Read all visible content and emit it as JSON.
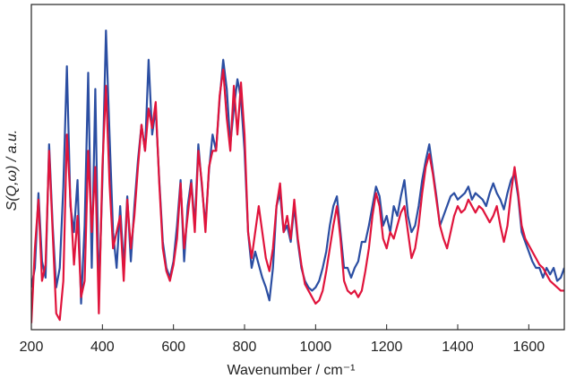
{
  "chart_data": {
    "type": "line",
    "xlabel": "Wavenumber / cm⁻¹",
    "ylabel": "S(Q,ω) / a.u.",
    "xlim": [
      200,
      1700
    ],
    "xticks": [
      200,
      400,
      600,
      800,
      1000,
      1200,
      1400,
      1600
    ],
    "ylim": [
      0,
      100
    ],
    "x": [
      200,
      210,
      220,
      230,
      240,
      250,
      260,
      270,
      280,
      290,
      300,
      310,
      320,
      330,
      340,
      350,
      360,
      370,
      380,
      390,
      400,
      410,
      420,
      430,
      440,
      450,
      460,
      470,
      480,
      490,
      500,
      510,
      520,
      530,
      540,
      550,
      560,
      570,
      580,
      590,
      600,
      610,
      620,
      630,
      640,
      650,
      660,
      670,
      680,
      690,
      700,
      710,
      720,
      730,
      740,
      750,
      760,
      770,
      780,
      790,
      800,
      810,
      820,
      830,
      840,
      850,
      860,
      870,
      880,
      890,
      900,
      910,
      920,
      930,
      940,
      950,
      960,
      970,
      980,
      990,
      1000,
      1010,
      1020,
      1030,
      1040,
      1050,
      1060,
      1070,
      1080,
      1090,
      1100,
      1110,
      1120,
      1130,
      1140,
      1150,
      1160,
      1170,
      1180,
      1190,
      1200,
      1210,
      1220,
      1230,
      1240,
      1250,
      1260,
      1270,
      1280,
      1290,
      1300,
      1310,
      1320,
      1330,
      1340,
      1350,
      1360,
      1370,
      1380,
      1390,
      1400,
      1410,
      1420,
      1430,
      1440,
      1450,
      1460,
      1470,
      1480,
      1490,
      1500,
      1510,
      1520,
      1530,
      1540,
      1550,
      1560,
      1570,
      1580,
      1590,
      1600,
      1610,
      1620,
      1630,
      1640,
      1650,
      1660,
      1670,
      1680,
      1690,
      1700
    ],
    "series": [
      {
        "color": "#2b4ea2",
        "values": [
          13,
          19,
          42,
          21,
          16,
          57,
          32,
          13,
          19,
          44,
          81,
          38,
          30,
          46,
          8,
          32,
          79,
          19,
          74,
          10,
          46,
          92,
          60,
          30,
          19,
          38,
          19,
          41,
          21,
          38,
          52,
          63,
          55,
          83,
          60,
          68,
          46,
          27,
          19,
          16,
          21,
          32,
          46,
          21,
          38,
          46,
          32,
          57,
          44,
          32,
          49,
          60,
          55,
          71,
          83,
          74,
          57,
          68,
          77,
          71,
          55,
          30,
          19,
          24,
          20,
          16,
          13,
          9,
          19,
          38,
          42,
          30,
          32,
          27,
          38,
          27,
          19,
          15,
          13,
          12,
          13,
          15,
          19,
          24,
          32,
          38,
          41,
          30,
          19,
          19,
          16,
          19,
          21,
          27,
          27,
          32,
          38,
          44,
          41,
          32,
          35,
          30,
          38,
          35,
          41,
          46,
          35,
          30,
          32,
          38,
          46,
          52,
          57,
          49,
          41,
          32,
          35,
          38,
          41,
          42,
          40,
          41,
          42,
          44,
          40,
          42,
          41,
          40,
          38,
          42,
          45,
          42,
          40,
          37,
          42,
          46,
          48,
          41,
          30,
          27,
          24,
          21,
          19,
          19,
          16,
          19,
          17,
          19,
          15,
          16,
          19
        ]
      },
      {
        "color": "#e0143c",
        "values": [
          2,
          25,
          40,
          15,
          20,
          55,
          30,
          5,
          3,
          15,
          60,
          40,
          20,
          35,
          10,
          15,
          55,
          30,
          50,
          5,
          50,
          75,
          45,
          25,
          30,
          35,
          15,
          40,
          25,
          35,
          50,
          63,
          55,
          68,
          62,
          70,
          45,
          25,
          18,
          15,
          20,
          28,
          45,
          25,
          35,
          45,
          30,
          55,
          45,
          30,
          50,
          55,
          55,
          72,
          80,
          65,
          55,
          75,
          60,
          76,
          60,
          30,
          22,
          30,
          38,
          30,
          22,
          18,
          25,
          38,
          45,
          30,
          35,
          28,
          40,
          28,
          20,
          14,
          12,
          10,
          8,
          9,
          12,
          18,
          25,
          32,
          38,
          28,
          15,
          12,
          11,
          12,
          10,
          12,
          18,
          25,
          35,
          42,
          38,
          28,
          25,
          30,
          28,
          32,
          36,
          38,
          30,
          22,
          25,
          32,
          42,
          50,
          54,
          48,
          40,
          32,
          28,
          25,
          30,
          35,
          38,
          36,
          37,
          40,
          38,
          36,
          38,
          37,
          35,
          33,
          35,
          38,
          32,
          27,
          32,
          42,
          50,
          42,
          32,
          28,
          26,
          24,
          22,
          20,
          19,
          17,
          15,
          14,
          13,
          12,
          12
        ]
      }
    ]
  }
}
